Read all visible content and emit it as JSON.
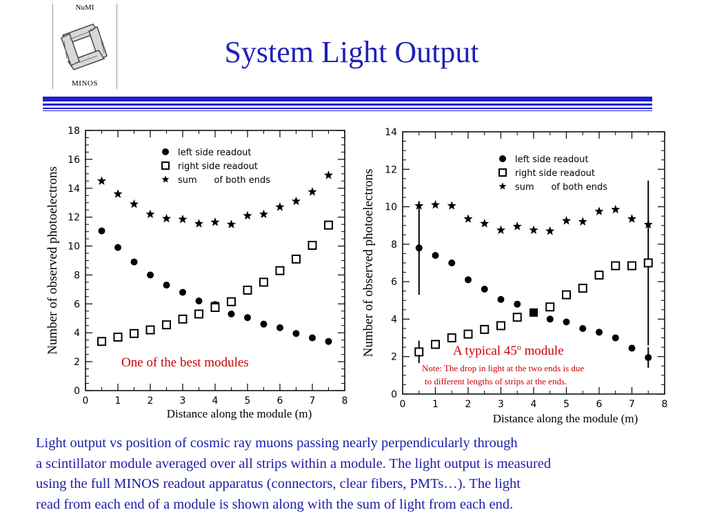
{
  "logo": {
    "top_text": "NuMI",
    "bottom_text": "MINOS"
  },
  "slide": {
    "title": "System Light Output"
  },
  "caption": {
    "lines": [
      "Light output vs position of cosmic ray muons passing nearly perpendicularly through",
      "a scintillator module averaged over all strips within a module. The light output is measured",
      "using the full MINOS readout apparatus (connectors, clear fibers, PMTs…). The light",
      "read from each end of a module is shown along with the sum of light from each end."
    ]
  },
  "colors": {
    "title": "#1f1fb8",
    "caption": "#1c1ca8",
    "annotation": "#cc0000",
    "rules": "#1f1fcc"
  },
  "chart_data": [
    {
      "type": "scatter",
      "title": "",
      "xlabel": "Distance along the module (m)",
      "ylabel": "Number of observed photoelectrons",
      "xlim": [
        0,
        8
      ],
      "ylim": [
        0,
        18
      ],
      "xticks": [
        "0",
        "1",
        "2",
        "3",
        "4",
        "5",
        "6",
        "7",
        "8"
      ],
      "yticks": [
        "0",
        "2",
        "4",
        "6",
        "8",
        "10",
        "12",
        "14",
        "16",
        "18"
      ],
      "legend": {
        "placement": "top-right",
        "entries": [
          {
            "marker": "dot",
            "label": "left side readout"
          },
          {
            "marker": "square",
            "label": "right side readout"
          },
          {
            "marker": "star",
            "label": "sum      of both ends"
          }
        ]
      },
      "annotation": "One of the best modules",
      "highlight": {
        "x": 4.0,
        "y": 5.85
      },
      "series": [
        {
          "marker": "dot",
          "x": [
            0.5,
            1.0,
            1.5,
            2.0,
            2.5,
            3.0,
            3.5,
            4.0,
            4.5,
            5.0,
            5.5,
            6.0,
            6.5,
            7.0,
            7.5
          ],
          "y": [
            11.05,
            9.9,
            8.9,
            8.0,
            7.3,
            6.8,
            6.2,
            5.95,
            5.3,
            5.05,
            4.6,
            4.35,
            3.95,
            3.65,
            3.4
          ]
        },
        {
          "marker": "square",
          "x": [
            0.5,
            1.0,
            1.5,
            2.0,
            2.5,
            3.0,
            3.5,
            4.0,
            4.5,
            5.0,
            5.5,
            6.0,
            6.5,
            7.0,
            7.5
          ],
          "y": [
            3.4,
            3.7,
            3.95,
            4.2,
            4.55,
            4.95,
            5.3,
            5.75,
            6.15,
            6.95,
            7.5,
            8.3,
            9.1,
            10.05,
            11.45
          ]
        },
        {
          "marker": "star",
          "x": [
            0.5,
            1.0,
            1.5,
            2.0,
            2.5,
            3.0,
            3.5,
            4.0,
            4.5,
            5.0,
            5.5,
            6.0,
            6.5,
            7.0,
            7.5
          ],
          "y": [
            14.5,
            13.6,
            12.9,
            12.2,
            11.9,
            11.85,
            11.55,
            11.65,
            11.5,
            12.1,
            12.2,
            12.7,
            13.1,
            13.75,
            14.9
          ]
        }
      ]
    },
    {
      "type": "scatter",
      "title": "",
      "xlabel": "Distance along the module (m)",
      "ylabel": "Number of observed photoelectrons",
      "xlim": [
        0,
        8
      ],
      "ylim": [
        0,
        14
      ],
      "xticks": [
        "0",
        "1",
        "2",
        "3",
        "4",
        "5",
        "6",
        "7",
        "8"
      ],
      "yticks": [
        "0",
        "2",
        "4",
        "6",
        "8",
        "10",
        "12",
        "14"
      ],
      "legend": {
        "placement": "top-right",
        "entries": [
          {
            "marker": "dot",
            "label": "left side readout"
          },
          {
            "marker": "square",
            "label": "right side readout"
          },
          {
            "marker": "star",
            "label": "sum      of both ends"
          }
        ]
      },
      "annotation_main": "A typical 45",
      "annotation_sup": "o",
      "annotation_tail": " module",
      "note_lines": [
        "Note: The drop in light at the two ends is due",
        "to different lengths of strips at the ends."
      ],
      "highlight": {
        "x": 4.0,
        "y": 4.35
      },
      "series": [
        {
          "marker": "dot",
          "x": [
            0.5,
            1.0,
            1.5,
            2.0,
            2.5,
            3.0,
            3.5,
            4.5,
            5.0,
            5.5,
            6.0,
            6.5,
            7.0,
            7.5
          ],
          "y": [
            7.8,
            7.4,
            7.0,
            6.1,
            5.6,
            5.05,
            4.8,
            4.0,
            3.85,
            3.5,
            3.3,
            3.0,
            2.45,
            1.95
          ],
          "err": {
            "0.5": 2.5,
            "7.5": 0.55
          }
        },
        {
          "marker": "square",
          "x": [
            0.5,
            1.0,
            1.5,
            2.0,
            2.5,
            3.0,
            3.5,
            4.5,
            5.0,
            5.5,
            6.0,
            6.5,
            7.0,
            7.5
          ],
          "y": [
            2.25,
            2.65,
            3.0,
            3.2,
            3.45,
            3.65,
            4.1,
            4.65,
            5.3,
            5.65,
            6.35,
            6.85,
            6.85,
            7.0
          ],
          "err": {
            "0.5": 0.6,
            "7.5": 4.4
          }
        },
        {
          "marker": "star",
          "x": [
            0.5,
            1.0,
            1.5,
            2.0,
            2.5,
            3.0,
            3.5,
            4.0,
            4.5,
            5.0,
            5.5,
            6.0,
            6.5,
            7.0,
            7.5
          ],
          "y": [
            10.05,
            10.1,
            10.05,
            9.35,
            9.1,
            8.75,
            8.95,
            8.75,
            8.7,
            9.25,
            9.2,
            9.75,
            9.85,
            9.35,
            9.05
          ],
          "err": {
            "1.0": 0.2
          }
        }
      ]
    }
  ]
}
